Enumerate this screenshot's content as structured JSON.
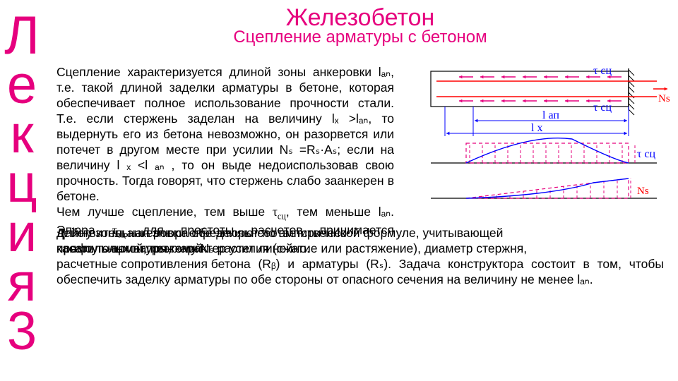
{
  "colors": {
    "magenta": "#e6007e",
    "text": "#333333",
    "red": "#ff0000",
    "blue": "#0000ff",
    "black": "#000000"
  },
  "vertical": {
    "chars": [
      "Л",
      "е",
      "к",
      "ц",
      "и",
      "я",
      "3"
    ],
    "color": "#e6007e",
    "fontsize": 76
  },
  "title": {
    "text": "Железобетон",
    "color": "#e6007e",
    "fontsize": 34
  },
  "subtitle": {
    "text": "Сцепление арматуры с бетоном",
    "color": "#e6007e",
    "fontsize": 24
  },
  "para1": "Сцепление характеризуется длиной зоны анкеровки lₐₙ, т.е. такой длиной заделки арматуры в бетоне, которая обеспечивает полное использование прочности стали. Т.е. если стержень заделан на величину lₓ >lₐₙ, то выдернуть его из бетона невозможно, он разорвется или потечет в другом месте при усилии Nₛ =Rₛ·Aₛ; если на величину l ₓ <l ₐₙ , то он выде недоиспользовав свою прочность. Тогда говорят, что стержень слабо заанкерен в бетоне.",
  "para2": "Чем лучше сцепление, тем выше τсц, тем меньше lₐₙ. Эпюра τсц для простоты расчетов принимается прямоугольной, поэтому Nₛ растет линейно.",
  "para3_overlay_a": "Длину зоны анкеровки определяют по эмпирической формуле, учитывающей",
  "para3_overlay_b": "профиль арматуры, характер усилия (сжатие или растяжение), диаметр стержня,",
  "para3_overlay_c": "расчетные сопротивления бетона",
  "para3_garble_a": "действительная эпюра обе   эпюры соответственно",
  "para3_garble_b": "касательных напряжений",
  "para3_tail": "(Rᵦ) и арматуры (Rₛ). Задача конструктора состоит в том, чтобы обеспечить заделку арматуры по обе стороны от опасного сечения на величину не менее lₐₙ.",
  "diagram": {
    "labels": {
      "tau_top": "τ сц",
      "tau_mid": "τ сц",
      "Ns_top": "Ns",
      "l_an": "l ап",
      "l_x": "l x",
      "tau_bottom": "τ сц",
      "Ns_bottom": "Ns"
    },
    "styling": {
      "beam_stroke": "#000000",
      "beam_stroke_width": 1.2,
      "rebar_color": "#ff0000",
      "rebar_width": 1.5,
      "arrow_color": "#e6007e",
      "arrow_width": 1.5,
      "dim_color": "#0000ff",
      "dash_color": "#e6007e",
      "label_color_blue": "#0000ff",
      "label_color_red": "#ff0000",
      "epure_fill": "none",
      "hatch_color": "#000000"
    }
  }
}
